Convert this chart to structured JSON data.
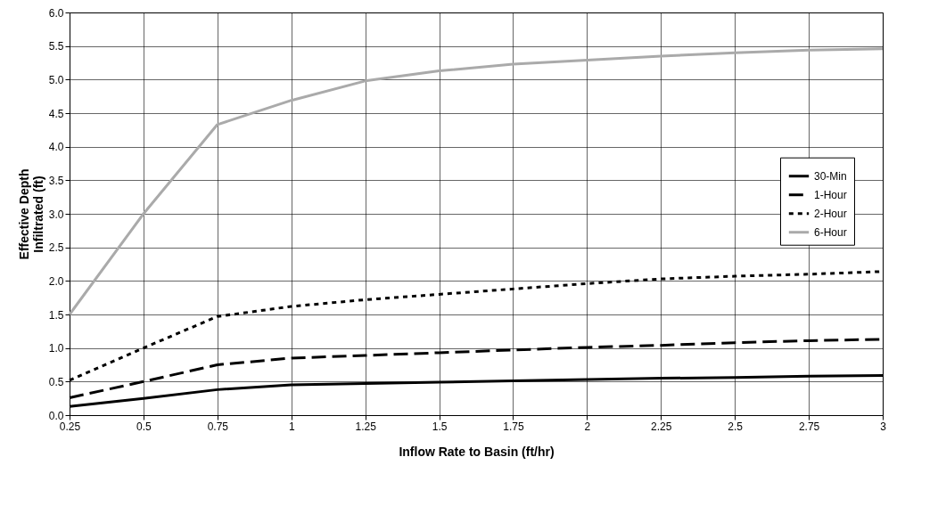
{
  "chart_data": {
    "type": "line",
    "xlabel": "Inflow Rate to Basin (ft/hr)",
    "ylabel": "Effective Depth Infiltrated (ft)",
    "x": [
      0.25,
      0.5,
      0.75,
      1,
      1.25,
      1.5,
      1.75,
      2,
      2.25,
      2.5,
      2.75,
      3
    ],
    "series": [
      {
        "name": "30-Min",
        "color": "#000000",
        "line_style": "solid",
        "values": [
          0.13,
          0.25,
          0.38,
          0.45,
          0.47,
          0.49,
          0.51,
          0.53,
          0.55,
          0.56,
          0.58,
          0.59
        ]
      },
      {
        "name": "1-Hour",
        "color": "#000000",
        "line_style": "longdash",
        "values": [
          0.26,
          0.5,
          0.75,
          0.85,
          0.89,
          0.93,
          0.97,
          1.01,
          1.04,
          1.08,
          1.11,
          1.13
        ]
      },
      {
        "name": "2-Hour",
        "color": "#000000",
        "line_style": "dashed",
        "values": [
          0.52,
          1.0,
          1.47,
          1.62,
          1.72,
          1.8,
          1.88,
          1.96,
          2.03,
          2.07,
          2.1,
          2.14
        ]
      },
      {
        "name": "6-Hour",
        "color": "#aaaaaa",
        "line_style": "solid",
        "values": [
          1.5,
          3.0,
          4.33,
          4.69,
          4.98,
          5.13,
          5.23,
          5.29,
          5.35,
          5.4,
          5.44,
          5.46
        ]
      }
    ],
    "xlim": [
      0.25,
      3
    ],
    "xticks": [
      0.25,
      0.5,
      0.75,
      1,
      1.25,
      1.5,
      1.75,
      2,
      2.25,
      2.5,
      2.75,
      3
    ],
    "ylim": [
      0,
      6
    ],
    "yticks": [
      {
        "value": 0,
        "label": "0.0"
      },
      {
        "value": 0.5,
        "label": "0.5"
      },
      {
        "value": 1,
        "label": "1.0"
      },
      {
        "value": 1.5,
        "label": "1.5"
      },
      {
        "value": 2,
        "label": "2.0"
      },
      {
        "value": 2.5,
        "label": "2.5"
      },
      {
        "value": 3,
        "label": "3.0"
      },
      {
        "value": 3.5,
        "label": "3.5"
      },
      {
        "value": 4,
        "label": "4.0"
      },
      {
        "value": 4.5,
        "label": "4.5"
      },
      {
        "value": 5,
        "label": "5.0"
      },
      {
        "value": 5.5,
        "label": "5.5"
      },
      {
        "value": 6,
        "label": "6.0"
      }
    ],
    "grid": true,
    "legend": "right"
  }
}
